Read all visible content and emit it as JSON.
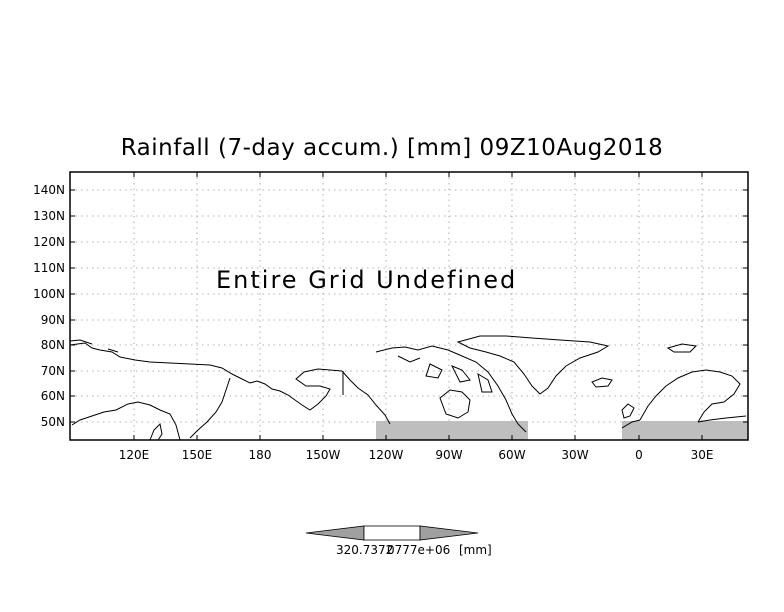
{
  "title": "Rainfall (7-day accum.) [mm] 09Z10Aug2018",
  "notice": "Entire Grid Undefined",
  "lat_labels": [
    "140N",
    "130N",
    "120N",
    "110N",
    "100N",
    "90N",
    "80N",
    "70N",
    "60N",
    "50N"
  ],
  "lon_labels": [
    "120E",
    "150E",
    "180",
    "150W",
    "120W",
    "90W",
    "60W",
    "30W",
    "0",
    "30E"
  ],
  "colorbar": {
    "labels": [
      "320.7372",
      "0777e+06",
      "[mm]"
    ],
    "colors": {
      "left": "#a0a0a0",
      "middle": "#ffffff",
      "right": "#a0a0a0"
    }
  },
  "colors": {
    "land_shade": "#bebebe",
    "coast": "#000000",
    "grid": "#9a9a9a"
  }
}
